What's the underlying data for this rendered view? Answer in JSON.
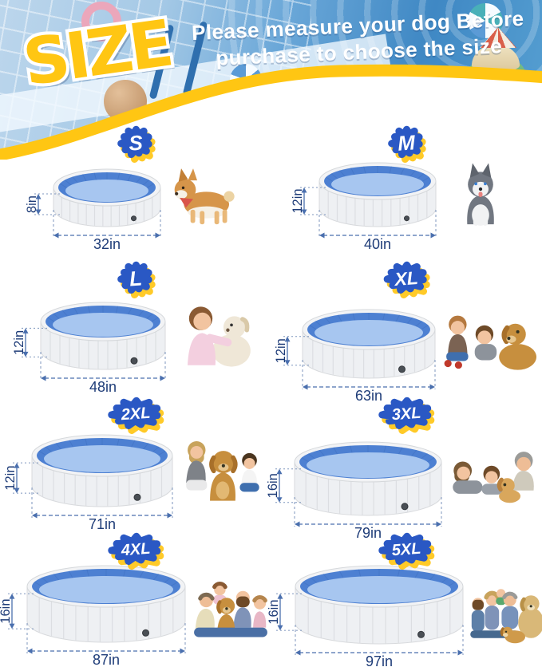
{
  "header": {
    "size_word": "SIZE",
    "tagline_line1": "Please measure your dog Before",
    "tagline_line2": "purchase to choose the size"
  },
  "colors": {
    "accent_yellow": "#ffc613",
    "badge_blue": "#2a58c4",
    "badge_shadow_yellow": "#ffca28",
    "dimension_text": "#1e3c78",
    "dimension_line": "#4a6fae",
    "pool_wall_gray": "#eef0f3",
    "pool_inner_blue": "#4d80d2",
    "pool_floor_blue": "#a7c6f0"
  },
  "sizes": [
    {
      "label": "S",
      "height_label": "8in",
      "width_label": "32in",
      "photo": "corgi-dog"
    },
    {
      "label": "M",
      "height_label": "12in",
      "width_label": "40in",
      "photo": "husky-dog"
    },
    {
      "label": "L",
      "height_label": "12in",
      "width_label": "48in",
      "photo": "girl-with-dog"
    },
    {
      "label": "XL",
      "height_label": "12in",
      "width_label": "63in",
      "photo": "kids-with-golden-dog"
    },
    {
      "label": "2XL",
      "height_label": "12in",
      "width_label": "71in",
      "photo": "woman-boy-with-dog"
    },
    {
      "label": "3XL",
      "height_label": "16in",
      "width_label": "79in",
      "photo": "family-with-puppy"
    },
    {
      "label": "4XL",
      "height_label": "16in",
      "width_label": "87in",
      "photo": "family-with-dog"
    },
    {
      "label": "5XL",
      "height_label": "16in",
      "width_label": "97in",
      "photo": "family-with-two-dogs"
    }
  ]
}
